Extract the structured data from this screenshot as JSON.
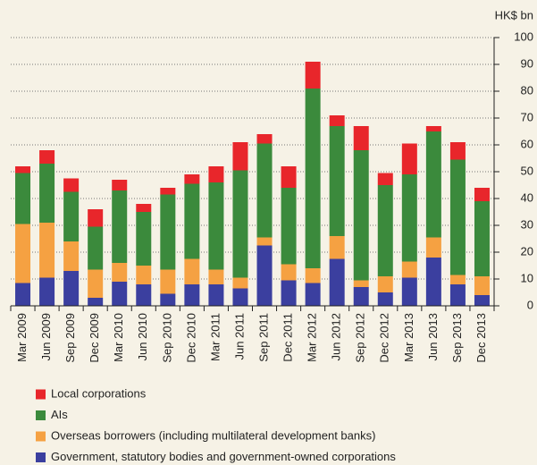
{
  "chart_data": {
    "type": "stacked_bar",
    "y_unit": "HK$ bn",
    "categories": [
      "Mar 2009",
      "Jun 2009",
      "Sep 2009",
      "Dec 2009",
      "Mar 2010",
      "Jun 2010",
      "Sep 2010",
      "Dec 2010",
      "Mar 2011",
      "Jun 2011",
      "Sep 2011",
      "Dec 2011",
      "Mar 2012",
      "Jun 2012",
      "Sep 2012",
      "Dec 2012",
      "Mar 2013",
      "Jun 2013",
      "Sep 2013",
      "Dec 2013"
    ],
    "series": [
      {
        "name": "Government, statutory bodies and government-owned corporations",
        "color": "#3b3f9f",
        "values": [
          8.5,
          10.5,
          13,
          3,
          9,
          8,
          4.5,
          8,
          8,
          6.5,
          22.5,
          9.5,
          8.5,
          17.5,
          7,
          5,
          10.5,
          18,
          8,
          4
        ]
      },
      {
        "name": "Overseas borrowers (including multilateral development banks)",
        "color": "#f5a142",
        "values": [
          22,
          20.5,
          11,
          10.5,
          7,
          7,
          9,
          9.5,
          5.5,
          4,
          3,
          6,
          5.5,
          8.5,
          2.5,
          6,
          6,
          7.5,
          3.5,
          7
        ]
      },
      {
        "name": "AIs",
        "color": "#3b8a3c",
        "values": [
          19,
          22,
          18.5,
          16,
          27,
          20,
          28,
          28,
          32.5,
          40,
          35,
          28.5,
          67,
          41,
          48.5,
          34,
          32.5,
          39.5,
          43,
          28
        ]
      },
      {
        "name": "Local corporations",
        "color": "#e8262b",
        "values": [
          2.5,
          5,
          5,
          6.5,
          4,
          3,
          2.5,
          3.5,
          6,
          10.5,
          3.5,
          8,
          10,
          4,
          9,
          4.5,
          11.5,
          2,
          6.5,
          5
        ]
      }
    ],
    "ylim": [
      0,
      100
    ],
    "yticks": [
      0,
      10,
      20,
      30,
      40,
      50,
      60,
      70,
      80,
      90,
      100
    ],
    "grid": true
  }
}
